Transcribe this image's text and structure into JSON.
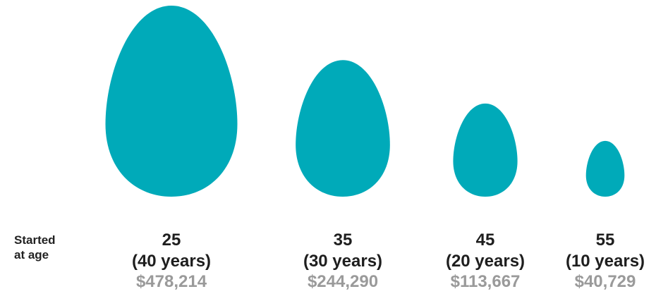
{
  "row_label": [
    "Started",
    "at age"
  ],
  "accent_color": "#00aab9",
  "chart_data": {
    "type": "bar",
    "title": "",
    "xlabel": "Started at age",
    "ylabel": "",
    "categories": [
      "25",
      "35",
      "45",
      "55"
    ],
    "durations": [
      "(40 years)",
      "(30 years)",
      "(20 years)",
      "(10 years)"
    ],
    "value_labels": [
      "$478,214",
      "$244,290",
      "$113,667",
      "$40,729"
    ],
    "values": [
      478214,
      244290,
      113667,
      40729
    ],
    "series": [
      {
        "values": [
          478214,
          244290,
          113667,
          40729
        ]
      }
    ]
  }
}
